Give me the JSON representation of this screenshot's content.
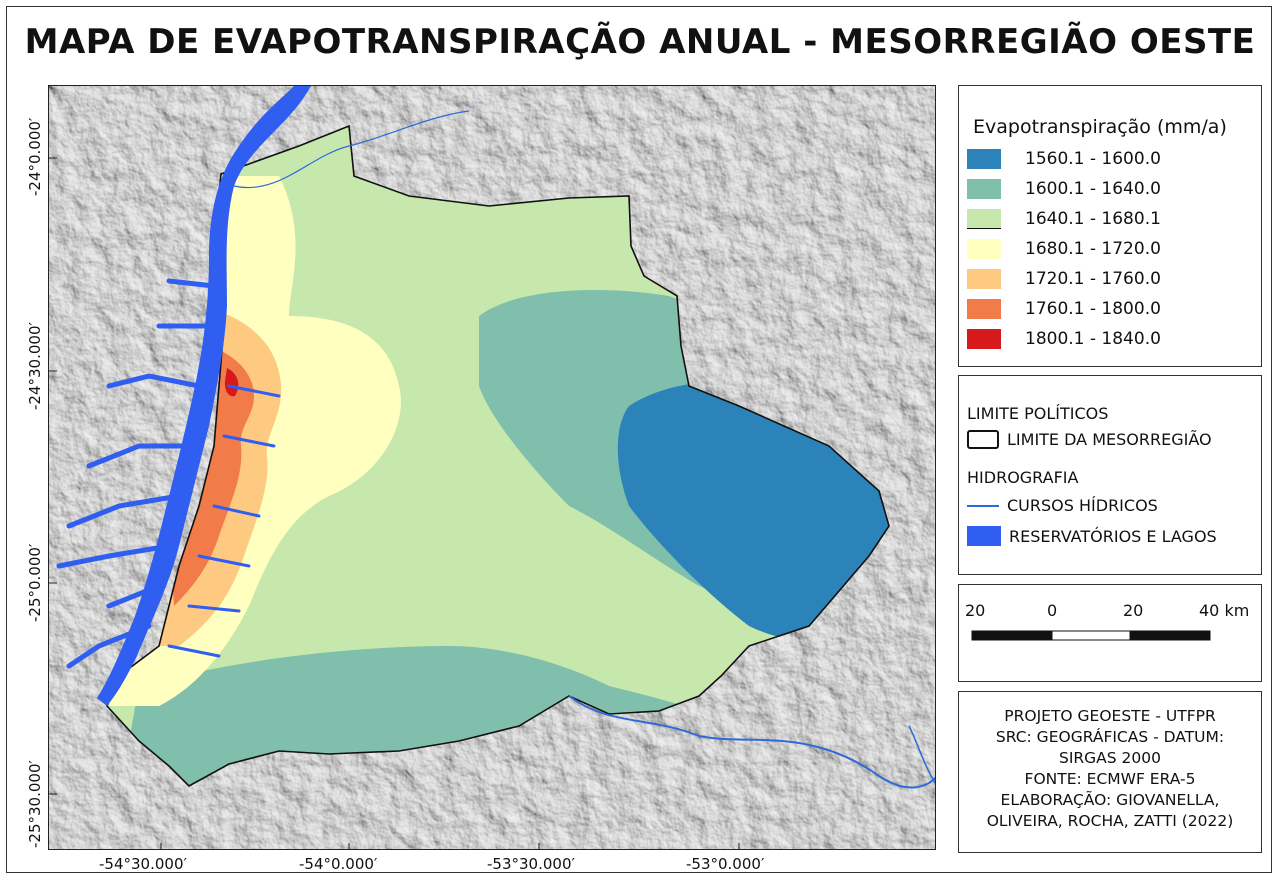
{
  "title": "MAPA DE EVAPOTRANSPIRAÇÃO ANUAL - MESORREGIÃO OESTE",
  "grid": {
    "lat_labels": [
      "-24°0.000′",
      "-24°30.000′",
      "-25°0.000′",
      "-25°30.000′"
    ],
    "lon_labels": [
      "-54°30.000′",
      "-54°0.000′",
      "-53°30.000′",
      "-53°0.000′"
    ]
  },
  "legend": {
    "title": "Evapotranspiração (mm/a)",
    "classes": [
      {
        "label": "1560.1 - 1600.0",
        "color": "#2b83ba"
      },
      {
        "label": "1600.1 - 1640.0",
        "color": "#80bfab"
      },
      {
        "label": "1640.1 - 1680.1",
        "color": "#c7e8ad"
      },
      {
        "label": "1680.1 - 1720.0",
        "color": "#ffffbf"
      },
      {
        "label": "1720.1 - 1760.0",
        "color": "#fec980"
      },
      {
        "label": "1760.1 - 1800.0",
        "color": "#f17c4a"
      },
      {
        "label": "1800.1 - 1840.0",
        "color": "#d7191c"
      }
    ]
  },
  "layers": {
    "political_heading": "LIMITE POLÍTICOS",
    "boundary_label": "LIMITE DA MESORREGIÃO",
    "hydro_heading": "HIDROGRAFIA",
    "rivers_label": "CURSOS HÍDRICOS",
    "reservoirs_label": "RESERVATÓRIOS E LAGOS",
    "river_color": "#2f6bd8",
    "reservoir_color": "#2f5ef0"
  },
  "scalebar": {
    "labels": [
      "20",
      "0",
      "20",
      "40 km"
    ]
  },
  "info": {
    "lines": [
      "PROJETO GEOESTE - UTFPR",
      "SRC: GEOGRÁFICAS - DATUM:",
      "SIRGAS 2000",
      "FONTE: ECMWF ERA-5",
      "ELABORAÇÃO: GIOVANELLA,",
      "OLIVEIRA, ROCHA, ZATTI (2022)"
    ]
  }
}
